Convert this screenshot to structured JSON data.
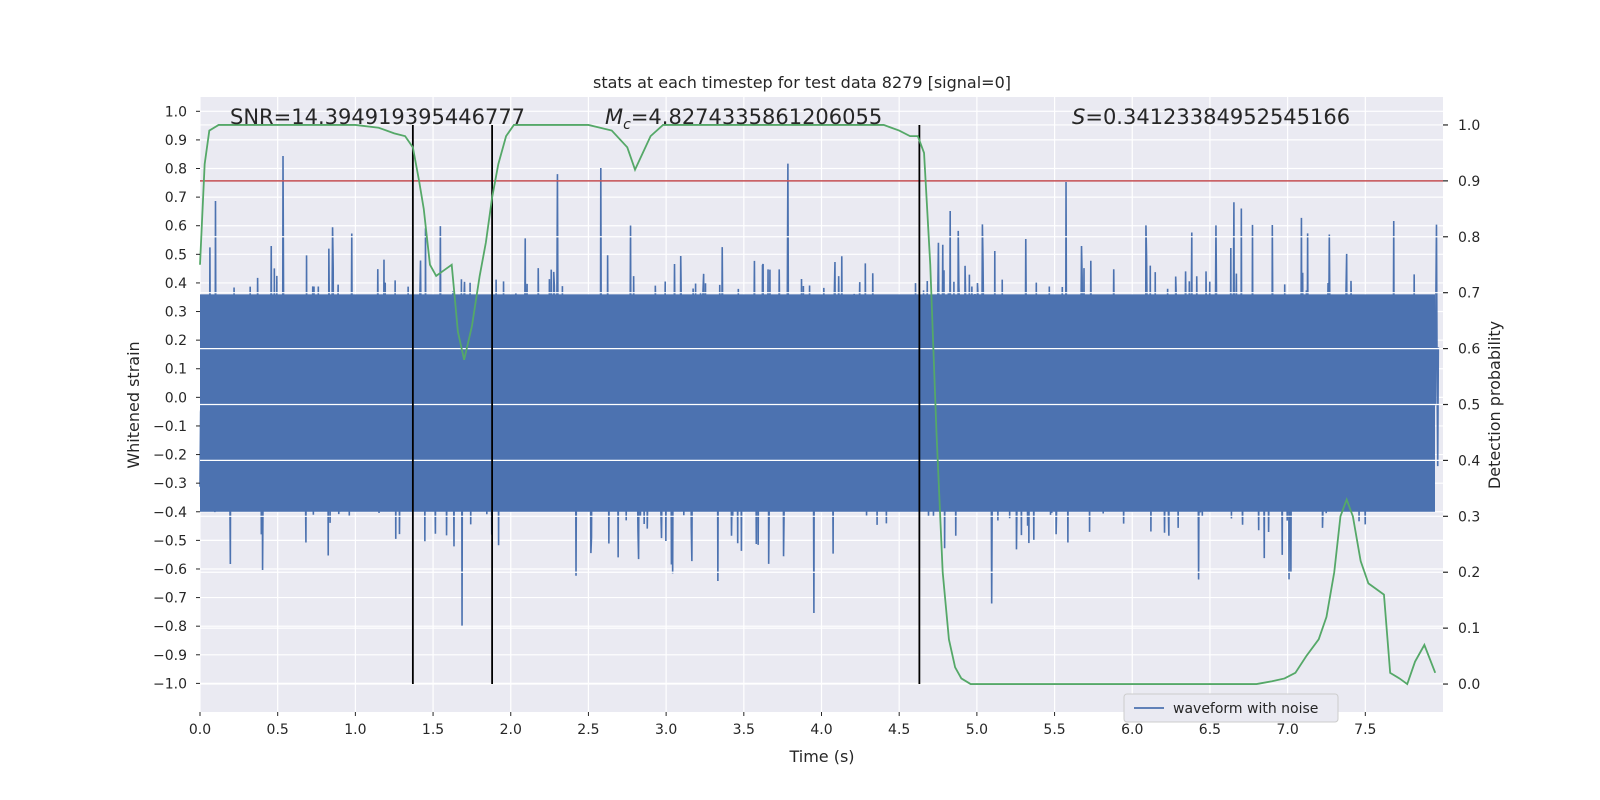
{
  "chart_data": {
    "type": "line",
    "title": "stats at each timestep for test data 8279 [signal=0]",
    "xlabel": "Time (s)",
    "ylabel": "Whitened strain",
    "y2label": "Detection probability",
    "xlim": [
      0.0,
      8.0
    ],
    "ylim": [
      -1.1,
      1.05
    ],
    "y2lim": [
      -0.05,
      1.05
    ],
    "x_ticks": [
      "0.0",
      "0.5",
      "1.0",
      "1.5",
      "2.0",
      "2.5",
      "3.0",
      "3.5",
      "4.0",
      "4.5",
      "5.0",
      "5.5",
      "6.0",
      "6.5",
      "7.0",
      "7.5"
    ],
    "y_ticks": [
      "1.0",
      "0.9",
      "0.8",
      "0.7",
      "0.6",
      "0.5",
      "0.4",
      "0.3",
      "0.2",
      "0.1",
      "0.0",
      "-0.1",
      "-0.2",
      "-0.3",
      "-0.4",
      "-0.5",
      "-0.6",
      "-0.7",
      "-0.8",
      "-0.9",
      "-1.0"
    ],
    "y2_ticks": [
      "1.0",
      "0.9",
      "0.8",
      "0.7",
      "0.6",
      "0.5",
      "0.4",
      "0.3",
      "0.2",
      "0.1",
      "0.0"
    ],
    "grid": true,
    "annotations": {
      "snr": "SNR=14.394919395446777",
      "mc_symbol": "M",
      "mc_sub": "c",
      "mc_value": "=4.8274335861206055",
      "s_symbol": "S",
      "s_value": "=0.34123384952545166"
    },
    "vertical_lines_x": [
      1.37,
      1.88,
      4.63
    ],
    "threshold_probability": 0.9,
    "legend": {
      "placement": "lower-right",
      "entries": [
        "waveform with noise"
      ]
    },
    "waveform": {
      "samples": 2000,
      "envelope_max": 1.0,
      "color": "#4c72b0"
    },
    "detection_probability": {
      "color": "#55a868",
      "x": [
        0.0,
        0.03,
        0.06,
        0.12,
        0.2,
        0.4,
        0.6,
        0.8,
        1.0,
        1.15,
        1.25,
        1.32,
        1.37,
        1.41,
        1.44,
        1.48,
        1.52,
        1.57,
        1.62,
        1.66,
        1.7,
        1.75,
        1.8,
        1.84,
        1.88,
        1.92,
        1.97,
        2.02,
        2.1,
        2.3,
        2.5,
        2.65,
        2.75,
        2.8,
        2.85,
        2.9,
        2.98,
        3.1,
        3.4,
        3.8,
        4.2,
        4.4,
        4.5,
        4.57,
        4.62,
        4.66,
        4.7,
        4.74,
        4.78,
        4.82,
        4.86,
        4.9,
        4.96,
        5.05,
        5.3,
        5.6,
        6.0,
        6.3,
        6.6,
        6.8,
        6.9,
        6.98,
        7.05,
        7.12,
        7.2,
        7.25,
        7.3,
        7.34,
        7.38,
        7.42,
        7.47,
        7.52,
        7.57,
        7.62,
        7.66,
        7.72,
        7.77,
        7.82,
        7.88,
        7.95
      ],
      "y": [
        0.75,
        0.93,
        0.99,
        1.0,
        1.0,
        1.0,
        1.0,
        1.0,
        1.0,
        0.995,
        0.985,
        0.98,
        0.96,
        0.9,
        0.85,
        0.75,
        0.73,
        0.74,
        0.75,
        0.63,
        0.58,
        0.64,
        0.73,
        0.79,
        0.87,
        0.93,
        0.98,
        1.0,
        1.0,
        1.0,
        1.0,
        0.99,
        0.96,
        0.92,
        0.95,
        0.98,
        1.0,
        1.0,
        1.0,
        1.0,
        1.0,
        1.0,
        0.99,
        0.98,
        0.98,
        0.95,
        0.75,
        0.45,
        0.2,
        0.08,
        0.03,
        0.01,
        0.0,
        0.0,
        0.0,
        0.0,
        0.0,
        0.0,
        0.0,
        0.0,
        0.005,
        0.01,
        0.02,
        0.05,
        0.08,
        0.12,
        0.2,
        0.3,
        0.33,
        0.3,
        0.22,
        0.18,
        0.17,
        0.16,
        0.02,
        0.01,
        0.0,
        0.04,
        0.07,
        0.02
      ]
    }
  }
}
